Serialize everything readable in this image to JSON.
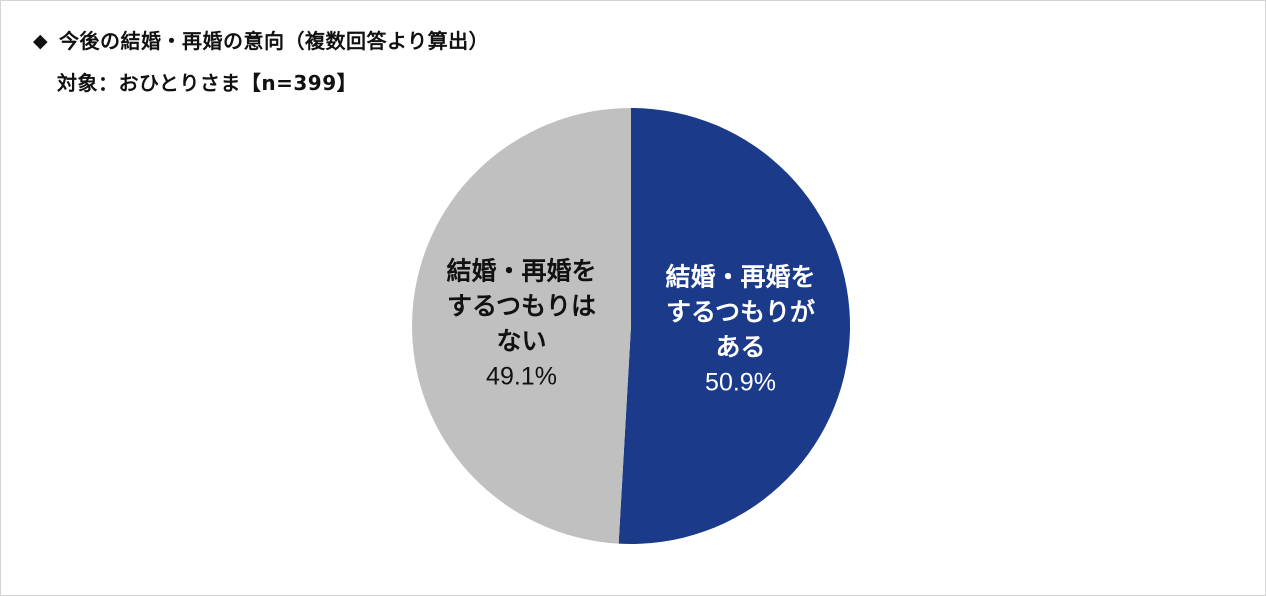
{
  "header": {
    "marker": "◆",
    "title": "今後の結婚・再婚の意向（複数回答より算出）",
    "subtitle": "対象：おひとりさま【n=399】"
  },
  "colors": {
    "slice_yes": "#1b3a8a",
    "slice_no": "#c0c0c0",
    "label_yes": "#ffffff",
    "label_no": "#111111",
    "frame_border": "#d4d4d4"
  },
  "chart_data": {
    "type": "pie",
    "title": "今後の結婚・再婚の意向（複数回答より算出）",
    "subtitle": "対象：おひとりさま【n=399】",
    "start_angle": "12 o'clock",
    "direction": "clockwise",
    "legend": "none",
    "slices": [
      {
        "key": "yes",
        "label_lines": [
          "結婚・再婚を",
          "するつもりが",
          "ある"
        ],
        "value": 50.9,
        "value_label": "50.9%"
      },
      {
        "key": "no",
        "label_lines": [
          "結婚・再婚を",
          "するつもりは",
          "ない"
        ],
        "value": 49.1,
        "value_label": "49.1%"
      }
    ]
  }
}
